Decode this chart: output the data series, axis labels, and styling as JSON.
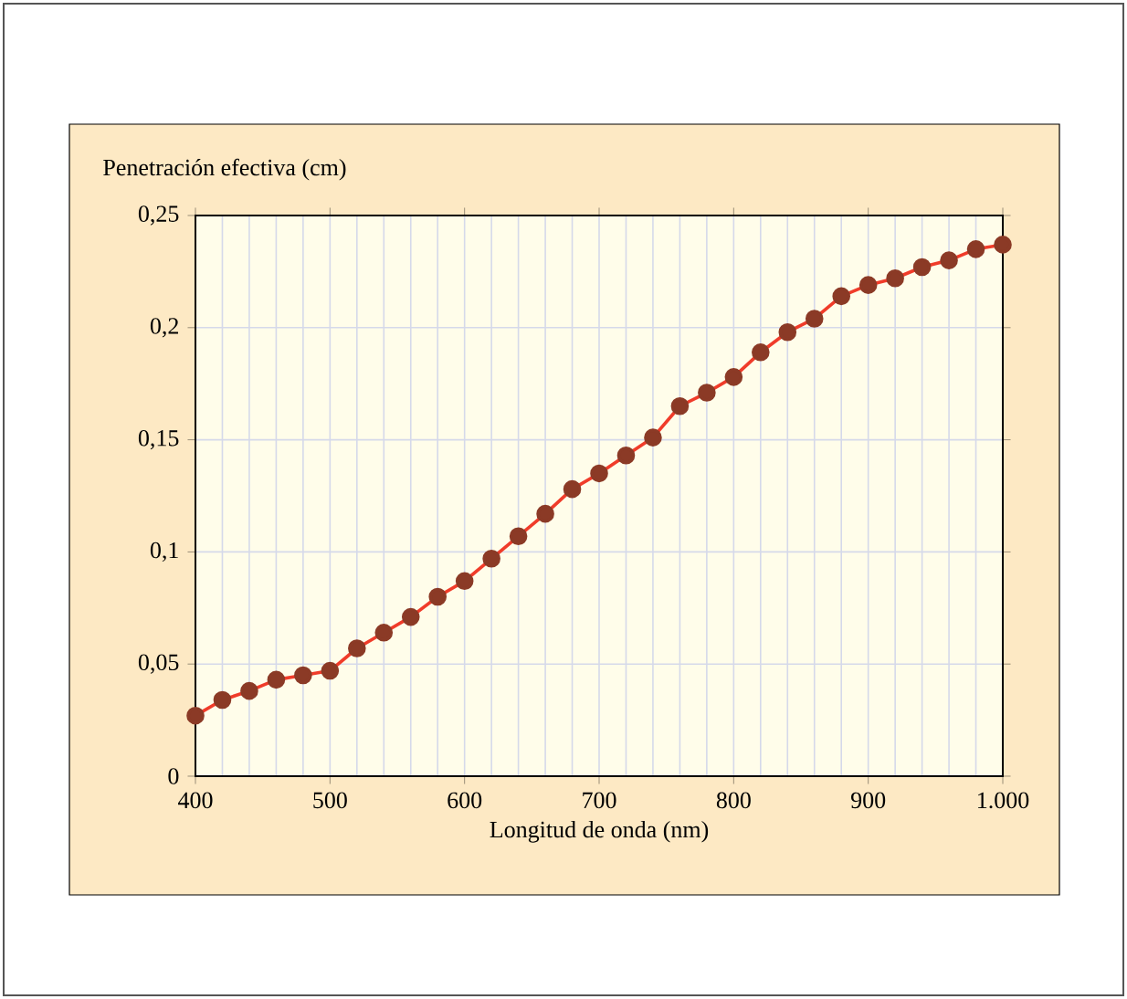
{
  "chart_data": {
    "type": "line",
    "xlabel": "Longitud de onda (nm)",
    "ylabel": "Penetración efectiva (cm)",
    "x": [
      400,
      420,
      440,
      460,
      480,
      500,
      520,
      540,
      560,
      580,
      600,
      620,
      640,
      660,
      680,
      700,
      720,
      740,
      760,
      780,
      800,
      820,
      840,
      860,
      880,
      900,
      920,
      940,
      960,
      980,
      1000
    ],
    "series": [
      {
        "color": "#f03c2a",
        "values": [
          0.027,
          0.034,
          0.038,
          0.043,
          0.045,
          0.047,
          0.057,
          0.064,
          0.071,
          0.08,
          0.087,
          0.097,
          0.107,
          0.117,
          0.128,
          0.135,
          0.143,
          0.151,
          0.165,
          0.171,
          0.178,
          0.189,
          0.198,
          0.204,
          0.214,
          0.219,
          0.222,
          0.227,
          0.23,
          0.235,
          0.237
        ]
      }
    ],
    "marker": "circle",
    "xlim": [
      400,
      1000
    ],
    "ylim": [
      0,
      0.25
    ],
    "xticks": [
      400,
      500,
      600,
      700,
      800,
      900,
      {
        "value": 1000,
        "label": "1.000"
      }
    ],
    "yticks": [
      0,
      {
        "value": 0.05,
        "label": "0,05"
      },
      {
        "value": 0.1,
        "label": "0,1"
      },
      {
        "value": 0.15,
        "label": "0,15"
      },
      {
        "value": 0.2,
        "label": "0,2"
      },
      {
        "value": 0.25,
        "label": "0,25"
      }
    ],
    "grid": true
  }
}
